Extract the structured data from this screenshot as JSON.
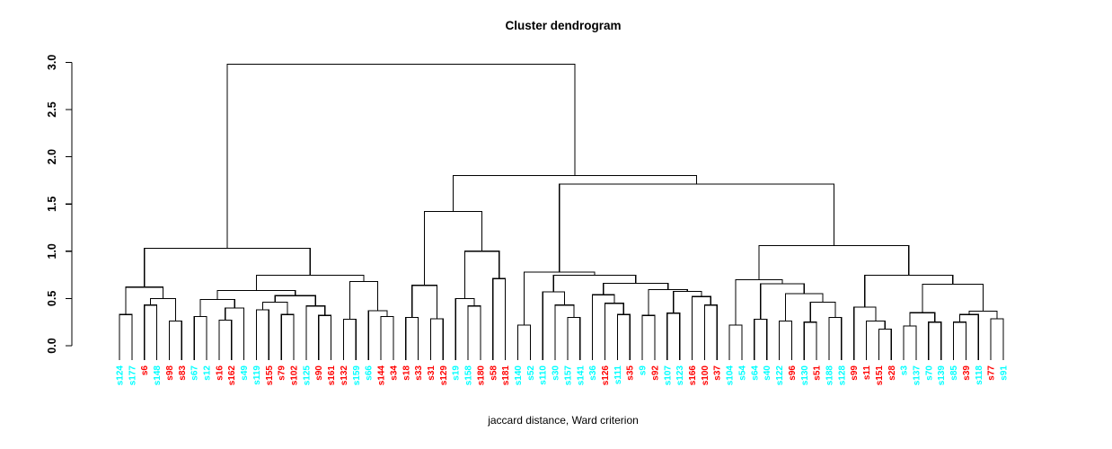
{
  "chart_data": {
    "type": "dendrogram",
    "title": "Cluster dendrogram",
    "caption": "jaccard distance, Ward criterion",
    "legend_position": "none",
    "grid": false,
    "ylim": [
      0.0,
      3.0
    ],
    "axis": {
      "tick_values": [
        0.0,
        0.5,
        1.0,
        1.5,
        2.0,
        2.5,
        3.0
      ],
      "tick_labels": [
        "0.0",
        "0.5",
        "1.0",
        "1.5",
        "2.0",
        "2.5",
        "3.0"
      ]
    },
    "palette": {
      "red": "#FF0000",
      "cyan": "#00FFFF",
      "lines": "#000000",
      "background": "#FFFFFF"
    },
    "leaves": [
      {
        "label": "s124",
        "group": "cyan"
      },
      {
        "label": "s177",
        "group": "cyan"
      },
      {
        "label": "s6",
        "group": "red"
      },
      {
        "label": "s148",
        "group": "cyan"
      },
      {
        "label": "s98",
        "group": "red"
      },
      {
        "label": "s83",
        "group": "red"
      },
      {
        "label": "s67",
        "group": "cyan"
      },
      {
        "label": "s12",
        "group": "cyan"
      },
      {
        "label": "s16",
        "group": "red"
      },
      {
        "label": "s162",
        "group": "red"
      },
      {
        "label": "s49",
        "group": "cyan"
      },
      {
        "label": "s119",
        "group": "cyan"
      },
      {
        "label": "s155",
        "group": "red"
      },
      {
        "label": "s79",
        "group": "red"
      },
      {
        "label": "s102",
        "group": "red"
      },
      {
        "label": "s125",
        "group": "cyan"
      },
      {
        "label": "s90",
        "group": "red"
      },
      {
        "label": "s161",
        "group": "red"
      },
      {
        "label": "s132",
        "group": "red"
      },
      {
        "label": "s159",
        "group": "cyan"
      },
      {
        "label": "s66",
        "group": "cyan"
      },
      {
        "label": "s144",
        "group": "red"
      },
      {
        "label": "s34",
        "group": "red"
      },
      {
        "label": "s18",
        "group": "red"
      },
      {
        "label": "s33",
        "group": "red"
      },
      {
        "label": "s31",
        "group": "red"
      },
      {
        "label": "s129",
        "group": "red"
      },
      {
        "label": "s19",
        "group": "cyan"
      },
      {
        "label": "s158",
        "group": "cyan"
      },
      {
        "label": "s180",
        "group": "red"
      },
      {
        "label": "s58",
        "group": "red"
      },
      {
        "label": "s181",
        "group": "red"
      },
      {
        "label": "s140",
        "group": "cyan"
      },
      {
        "label": "s52",
        "group": "cyan"
      },
      {
        "label": "s110",
        "group": "cyan"
      },
      {
        "label": "s30",
        "group": "cyan"
      },
      {
        "label": "s157",
        "group": "cyan"
      },
      {
        "label": "s141",
        "group": "cyan"
      },
      {
        "label": "s36",
        "group": "cyan"
      },
      {
        "label": "s126",
        "group": "red"
      },
      {
        "label": "s111",
        "group": "cyan"
      },
      {
        "label": "s35",
        "group": "red"
      },
      {
        "label": "s9",
        "group": "cyan"
      },
      {
        "label": "s92",
        "group": "red"
      },
      {
        "label": "s107",
        "group": "cyan"
      },
      {
        "label": "s123",
        "group": "cyan"
      },
      {
        "label": "s166",
        "group": "red"
      },
      {
        "label": "s100",
        "group": "red"
      },
      {
        "label": "s37",
        "group": "red"
      },
      {
        "label": "s104",
        "group": "cyan"
      },
      {
        "label": "s54",
        "group": "cyan"
      },
      {
        "label": "s64",
        "group": "cyan"
      },
      {
        "label": "s40",
        "group": "cyan"
      },
      {
        "label": "s122",
        "group": "cyan"
      },
      {
        "label": "s96",
        "group": "red"
      },
      {
        "label": "s130",
        "group": "cyan"
      },
      {
        "label": "s51",
        "group": "red"
      },
      {
        "label": "s188",
        "group": "cyan"
      },
      {
        "label": "s128",
        "group": "cyan"
      },
      {
        "label": "s99",
        "group": "red"
      },
      {
        "label": "s11",
        "group": "red"
      },
      {
        "label": "s151",
        "group": "red"
      },
      {
        "label": "s28",
        "group": "red"
      },
      {
        "label": "s3",
        "group": "cyan"
      },
      {
        "label": "s137",
        "group": "cyan"
      },
      {
        "label": "s70",
        "group": "cyan"
      },
      {
        "label": "s139",
        "group": "cyan"
      },
      {
        "label": "s85",
        "group": "cyan"
      },
      {
        "label": "s39",
        "group": "red"
      },
      {
        "label": "s118",
        "group": "cyan"
      },
      {
        "label": "s77",
        "group": "red"
      },
      {
        "label": "s91",
        "group": "cyan"
      }
    ],
    "tree": {
      "h": 2.98,
      "c": [
        {
          "h": 1.03,
          "c": [
            {
              "h": 0.62,
              "c": [
                {
                  "h": 0.33,
                  "c": [
                    0,
                    1
                  ]
                },
                {
                  "h": 0.5,
                  "c": [
                    {
                      "h": 0.43,
                      "c": [
                        2,
                        3
                      ]
                    },
                    {
                      "h": 0.26,
                      "c": [
                        4,
                        5
                      ]
                    }
                  ]
                }
              ]
            },
            {
              "h": 0.745,
              "c": [
                {
                  "h": 0.585,
                  "c": [
                    {
                      "h": 0.49,
                      "c": [
                        {
                          "h": 0.31,
                          "c": [
                            6,
                            7
                          ]
                        },
                        {
                          "h": 0.4,
                          "c": [
                            {
                              "h": 0.27,
                              "c": [
                                8,
                                9
                              ]
                            },
                            10
                          ]
                        }
                      ]
                    },
                    {
                      "h": 0.53,
                      "c": [
                        {
                          "h": 0.46,
                          "c": [
                            {
                              "h": 0.38,
                              "c": [
                                11,
                                12
                              ]
                            },
                            {
                              "h": 0.33,
                              "c": [
                                13,
                                14
                              ]
                            }
                          ]
                        },
                        {
                          "h": 0.42,
                          "c": [
                            15,
                            {
                              "h": 0.32,
                              "c": [
                                16,
                                17
                              ]
                            }
                          ]
                        }
                      ]
                    }
                  ]
                },
                {
                  "h": 0.68,
                  "c": [
                    {
                      "h": 0.28,
                      "c": [
                        18,
                        19
                      ]
                    },
                    {
                      "h": 0.37,
                      "c": [
                        20,
                        {
                          "h": 0.31,
                          "c": [
                            21,
                            22
                          ]
                        }
                      ]
                    }
                  ]
                }
              ]
            }
          ]
        },
        {
          "h": 1.8,
          "c": [
            {
              "h": 1.42,
              "c": [
                {
                  "h": 0.64,
                  "c": [
                    {
                      "h": 0.3,
                      "c": [
                        23,
                        24
                      ]
                    },
                    {
                      "h": 0.285,
                      "c": [
                        25,
                        26
                      ]
                    }
                  ]
                },
                {
                  "h": 1.0,
                  "c": [
                    {
                      "h": 0.5,
                      "c": [
                        27,
                        {
                          "h": 0.42,
                          "c": [
                            28,
                            29
                          ]
                        }
                      ]
                    },
                    {
                      "h": 0.71,
                      "c": [
                        30,
                        31
                      ]
                    }
                  ]
                }
              ]
            },
            {
              "h": 1.71,
              "c": [
                {
                  "h": 0.78,
                  "c": [
                    {
                      "h": 0.22,
                      "c": [
                        32,
                        33
                      ]
                    },
                    {
                      "h": 0.745,
                      "c": [
                        {
                          "h": 0.57,
                          "c": [
                            34,
                            {
                              "h": 0.43,
                              "c": [
                                35,
                                {
                                  "h": 0.3,
                                  "c": [
                                    36,
                                    37
                                  ]
                                }
                              ]
                            }
                          ]
                        },
                        {
                          "h": 0.66,
                          "c": [
                            {
                              "h": 0.54,
                              "c": [
                                38,
                                {
                                  "h": 0.45,
                                  "c": [
                                    39,
                                    {
                                      "h": 0.33,
                                      "c": [
                                        40,
                                        41
                                      ]
                                    }
                                  ]
                                }
                              ]
                            },
                            {
                              "h": 0.595,
                              "c": [
                                {
                                  "h": 0.32,
                                  "c": [
                                    42,
                                    43
                                  ]
                                },
                                {
                                  "h": 0.575,
                                  "c": [
                                    {
                                      "h": 0.345,
                                      "c": [
                                        44,
                                        45
                                      ]
                                    },
                                    {
                                      "h": 0.52,
                                      "c": [
                                        46,
                                        {
                                          "h": 0.43,
                                          "c": [
                                            47,
                                            48
                                          ]
                                        }
                                      ]
                                    }
                                  ]
                                }
                              ]
                            }
                          ]
                        }
                      ]
                    }
                  ]
                },
                {
                  "h": 1.06,
                  "c": [
                    {
                      "h": 0.7,
                      "c": [
                        {
                          "h": 0.22,
                          "c": [
                            49,
                            50
                          ]
                        },
                        {
                          "h": 0.655,
                          "c": [
                            {
                              "h": 0.28,
                              "c": [
                                51,
                                52
                              ]
                            },
                            {
                              "h": 0.55,
                              "c": [
                                {
                                  "h": 0.26,
                                  "c": [
                                    53,
                                    54
                                  ]
                                },
                                {
                                  "h": 0.46,
                                  "c": [
                                    {
                                      "h": 0.25,
                                      "c": [
                                        55,
                                        56
                                      ]
                                    },
                                    {
                                      "h": 0.3,
                                      "c": [
                                        57,
                                        58
                                      ]
                                    }
                                  ]
                                }
                              ]
                            }
                          ]
                        }
                      ]
                    },
                    {
                      "h": 0.745,
                      "c": [
                        {
                          "h": 0.41,
                          "c": [
                            59,
                            {
                              "h": 0.26,
                              "c": [
                                60,
                                {
                                  "h": 0.175,
                                  "c": [
                                    61,
                                    62
                                  ]
                                }
                              ]
                            }
                          ]
                        },
                        {
                          "h": 0.65,
                          "c": [
                            {
                              "h": 0.35,
                              "c": [
                                {
                                  "h": 0.21,
                                  "c": [
                                    63,
                                    64
                                  ]
                                },
                                {
                                  "h": 0.25,
                                  "c": [
                                    65,
                                    66
                                  ]
                                }
                              ]
                            },
                            {
                              "h": 0.365,
                              "c": [
                                {
                                  "h": 0.33,
                                  "c": [
                                    {
                                      "h": 0.25,
                                      "c": [
                                        67,
                                        68
                                      ]
                                    },
                                    69
                                  ]
                                },
                                {
                                  "h": 0.285,
                                  "c": [
                                    70,
                                    71
                                  ]
                                }
                              ]
                            }
                          ]
                        }
                      ]
                    }
                  ]
                }
              ]
            }
          ]
        }
      ]
    }
  }
}
